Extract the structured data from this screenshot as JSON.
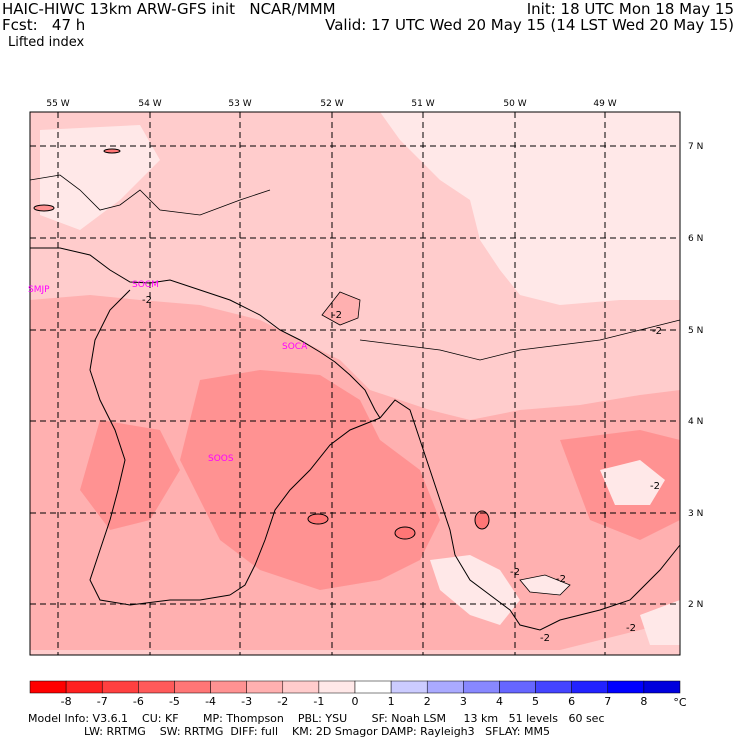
{
  "header": {
    "line1_left": "HAIC-HIWC 13km ARW-GFS init   NCAR/MMM",
    "line1_right": "Init: 18 UTC Mon 18 May 15",
    "line2_left": "Fcst:   47 h",
    "line2_right": "Valid: 17 UTC Wed 20 May 15 (14 LST Wed 20 May 15)",
    "field": "Lifted index"
  },
  "map": {
    "lon_labels": [
      "55 W",
      "54 W",
      "53 W",
      "52 W",
      "51 W",
      "50 W",
      "49 W"
    ],
    "lat_labels": [
      "7 N",
      "6 N",
      "5 N",
      "4 N",
      "3 N",
      "2 N"
    ],
    "stations": [
      "SMJP",
      "SOCM",
      "SOCA",
      "SOOS"
    ],
    "contour_labels": [
      "-2",
      "-2",
      "-2",
      "-2",
      "-2",
      "-2",
      "-2",
      "-2"
    ]
  },
  "colorbar": {
    "ticks": [
      "-8",
      "-7",
      "-6",
      "-5",
      "-4",
      "-3",
      "-2",
      "-1",
      "0",
      "1",
      "2",
      "3",
      "4",
      "5",
      "6",
      "7",
      "8"
    ],
    "unit": "°C",
    "colors": [
      "#ff0000",
      "#ff2020",
      "#ff4040",
      "#ff5a5a",
      "#ff7676",
      "#ff9292",
      "#ffb0b0",
      "#ffcccc",
      "#ffe8e8",
      "#ffffff",
      "#ccccff",
      "#aaaaff",
      "#8888ff",
      "#6666ff",
      "#4444ff",
      "#2222ff",
      "#0000ff",
      "#0000dd"
    ]
  },
  "footer": {
    "line1": "Model Info: V3.6.1    CU: KF       MP: Thompson    PBL: YSU       SF: Noah LSM     13 km   51 levels   60 sec",
    "line2": "                LW: RRTMG    SW: RRTMG  DIFF: full    KM: 2D Smagor DAMP: Rayleigh3   SFLAY: MM5"
  }
}
